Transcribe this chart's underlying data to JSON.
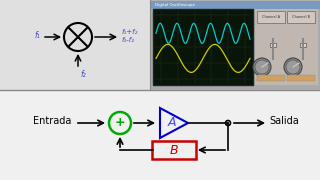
{
  "bg_color": "#b0b0b0",
  "top_left_bg": "#e0e0e0",
  "osc_screen_bg": "#0a150a",
  "wave1_color": "#00cccc",
  "wave2_color": "#cccc00",
  "bottom_bg": "#f0f0f0",
  "mixer_circle_color": "#000000",
  "summer_circle_color": "#00aa00",
  "amp_triangle_color": "#0000cc",
  "amp_text_color": "#4444ff",
  "feedback_box_color": "#cc0000",
  "feedback_text_color": "#cc0000",
  "arrow_color": "#000000",
  "label_color": "#000000",
  "f1_color": "#4444cc",
  "f2_color": "#4444cc",
  "output_labels": [
    "f₁+f₂",
    "f₁-f₂"
  ],
  "input_label": "f₁",
  "bottom_label": "f₂",
  "entrada_label": "Entrada",
  "salida_label": "Salida",
  "a_label": "A",
  "b_label": "B",
  "plus_label": "+"
}
